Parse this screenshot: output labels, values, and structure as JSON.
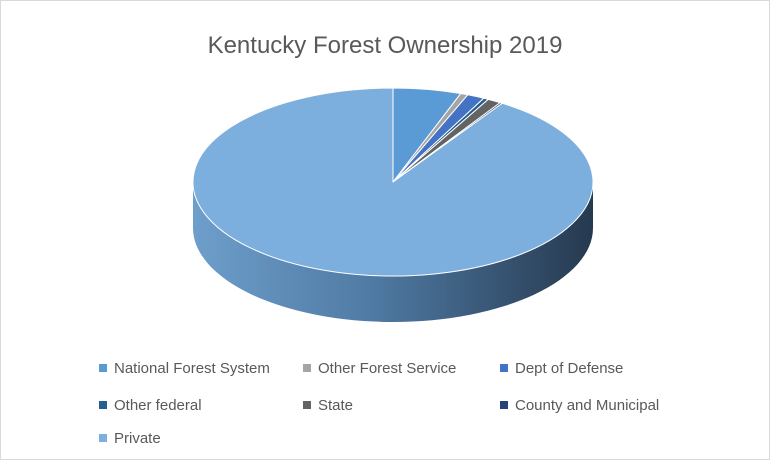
{
  "chart_data": {
    "type": "pie",
    "style": "3d",
    "title": "Kentucky Forest Ownership 2019",
    "legend_position": "bottom",
    "slices": [
      {
        "label": "National Forest System",
        "value": 5.5,
        "color": "#5b9bd5"
      },
      {
        "label": "Other Forest Service",
        "value": 0.6,
        "color": "#a5a5a5"
      },
      {
        "label": "Dept of Defense",
        "value": 1.4,
        "color": "#4472c4"
      },
      {
        "label": "Other federal",
        "value": 0.4,
        "color": "#255e91"
      },
      {
        "label": "State",
        "value": 1.1,
        "color": "#636363"
      },
      {
        "label": "County and Municipal",
        "value": 0.2,
        "color": "#264478"
      },
      {
        "label": "Private",
        "value": 90.8,
        "color": "#7cafdd"
      }
    ]
  }
}
